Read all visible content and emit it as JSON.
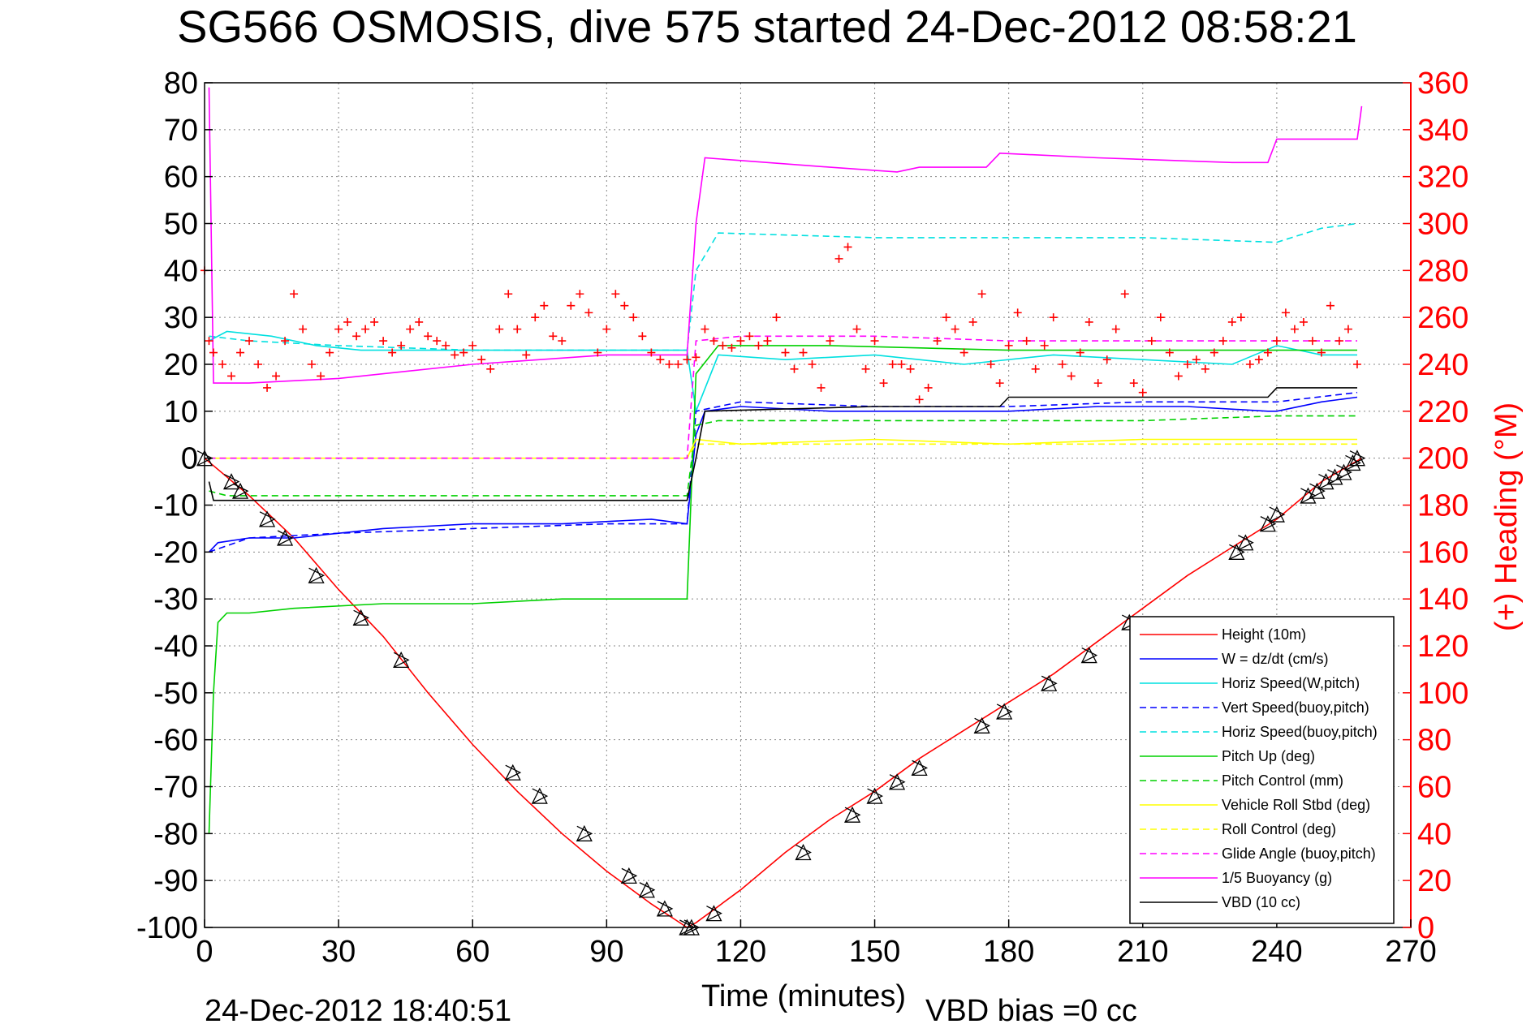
{
  "chart_data": {
    "type": "line",
    "title": "SG566 OSMOSIS, dive 575 started 24-Dec-2012 08:58:21",
    "xlabel": "Time (minutes)",
    "ylabel": "",
    "ylabel_right": "(+) Heading (°M)",
    "footer_left": "24-Dec-2012 18:40:51",
    "footer_right": "VBD bias =0 cc",
    "xlim": [
      0,
      270
    ],
    "ylim": [
      -100,
      80
    ],
    "ylim_right": [
      0,
      360
    ],
    "x_ticks": [
      0,
      30,
      60,
      90,
      120,
      150,
      180,
      210,
      240,
      270
    ],
    "y_ticks": [
      80,
      70,
      60,
      50,
      40,
      30,
      20,
      10,
      0,
      -10,
      -20,
      -30,
      -40,
      -50,
      -60,
      -70,
      -80,
      -90,
      -100
    ],
    "y_ticks_right": [
      360,
      340,
      320,
      300,
      280,
      260,
      240,
      220,
      200,
      180,
      160,
      140,
      120,
      100,
      80,
      60,
      40,
      20,
      0
    ],
    "grid": true,
    "legend_position": "bottom-right",
    "colors": {
      "axis": "#000000",
      "right_axis": "#ff0000",
      "grid": "#888888"
    },
    "series": [
      {
        "name": "Height (10m)",
        "color": "#ff0000",
        "dash": "solid",
        "x": [
          0,
          10,
          20,
          30,
          40,
          50,
          60,
          70,
          80,
          90,
          100,
          108,
          110,
          120,
          130,
          140,
          150,
          160,
          170,
          180,
          190,
          200,
          210,
          220,
          230,
          240,
          250,
          259
        ],
        "y": [
          0,
          -8,
          -17,
          -28,
          -38,
          -50,
          -61,
          -71,
          -80,
          -88,
          -95,
          -100,
          -99,
          -92,
          -84,
          -77,
          -71,
          -64,
          -58,
          -52,
          -46,
          -39,
          -32,
          -25,
          -19,
          -13,
          -5,
          0
        ]
      },
      {
        "name": "W = dz/dt (cm/s)",
        "color": "#0000ff",
        "dash": "solid",
        "x": [
          1,
          3,
          10,
          20,
          30,
          40,
          60,
          80,
          100,
          108,
          110,
          112,
          120,
          140,
          160,
          180,
          200,
          220,
          238,
          240,
          250,
          258
        ],
        "y": [
          -20,
          -18,
          -17,
          -17,
          -16,
          -15,
          -14,
          -14,
          -13,
          -14,
          5,
          10,
          11,
          10,
          10,
          10,
          11,
          11,
          10,
          10,
          12,
          13
        ]
      },
      {
        "name": "Horiz Speed(W,pitch)",
        "color": "#00e0e0",
        "dash": "solid",
        "x": [
          1,
          5,
          15,
          25,
          35,
          50,
          70,
          90,
          108,
          110,
          115,
          130,
          150,
          170,
          190,
          210,
          230,
          240,
          250,
          258
        ],
        "y": [
          25,
          27,
          26,
          24,
          23,
          23,
          23,
          23,
          23,
          10,
          22,
          21,
          22,
          20,
          22,
          21,
          20,
          24,
          22,
          22
        ]
      },
      {
        "name": "Vert Speed(buoy,pitch)",
        "color": "#0000ff",
        "dash": "dashed",
        "x": [
          1,
          10,
          30,
          60,
          90,
          108,
          110,
          120,
          150,
          180,
          210,
          240,
          258
        ],
        "y": [
          -20,
          -17,
          -16,
          -15,
          -14,
          -14,
          10,
          12,
          11,
          11,
          12,
          12,
          14
        ]
      },
      {
        "name": "Horiz Speed(buoy,pitch)",
        "color": "#00e0e0",
        "dash": "dashed",
        "x": [
          1,
          10,
          30,
          60,
          90,
          108,
          110,
          115,
          150,
          180,
          210,
          240,
          250,
          258
        ],
        "y": [
          26,
          25,
          24,
          23,
          23,
          23,
          40,
          48,
          47,
          47,
          47,
          46,
          49,
          50
        ]
      },
      {
        "name": "Pitch Up (deg)",
        "color": "#00d000",
        "dash": "solid",
        "x": [
          1,
          2,
          3,
          5,
          10,
          20,
          40,
          60,
          80,
          100,
          108,
          110,
          115,
          140,
          180,
          220,
          250,
          258
        ],
        "y": [
          -80,
          -50,
          -35,
          -33,
          -33,
          -32,
          -31,
          -31,
          -30,
          -30,
          -30,
          18,
          24,
          24,
          23,
          23,
          23,
          23
        ]
      },
      {
        "name": "Pitch Control (mm)",
        "color": "#00d000",
        "dash": "dashed",
        "x": [
          1,
          5,
          20,
          60,
          100,
          108,
          110,
          115,
          150,
          180,
          210,
          240,
          258
        ],
        "y": [
          -7,
          -8,
          -8,
          -8,
          -8,
          -8,
          7,
          8,
          8,
          8,
          8,
          9,
          9
        ]
      },
      {
        "name": "Vehicle Roll Stbd (deg)",
        "color": "#ffff00",
        "dash": "solid",
        "x": [
          1,
          10,
          30,
          60,
          90,
          108,
          110,
          120,
          150,
          180,
          210,
          240,
          258
        ],
        "y": [
          0,
          0,
          0,
          0,
          0,
          0,
          4,
          3,
          4,
          3,
          4,
          4,
          4
        ]
      },
      {
        "name": "Roll Control (deg)",
        "color": "#ffff00",
        "dash": "dashed",
        "x": [
          1,
          30,
          60,
          90,
          108,
          110,
          150,
          180,
          210,
          240,
          258
        ],
        "y": [
          0,
          0,
          0,
          0,
          0,
          3,
          3,
          3,
          3,
          3,
          3
        ]
      },
      {
        "name": "Glide Angle (buoy,pitch)",
        "color": "#ff00ff",
        "dash": "dashed",
        "x": [
          1,
          10,
          30,
          60,
          90,
          108,
          110,
          120,
          150,
          180,
          210,
          240,
          258
        ],
        "y": [
          0,
          0,
          0,
          0,
          0,
          0,
          25,
          26,
          26,
          25,
          25,
          25,
          25
        ]
      },
      {
        "name": "1/5 Buoyancy (g)",
        "color": "#ff00ff",
        "dash": "solid",
        "x": [
          1,
          2,
          10,
          30,
          60,
          90,
          108,
          110,
          112,
          140,
          155,
          160,
          175,
          178,
          200,
          230,
          238,
          240,
          258,
          259
        ],
        "y": [
          79,
          16,
          16,
          17,
          20,
          22,
          22,
          50,
          64,
          62,
          61,
          62,
          62,
          65,
          64,
          63,
          63,
          68,
          68,
          75
        ]
      },
      {
        "name": "VBD (10 cc)",
        "color": "#000000",
        "dash": "solid",
        "x": [
          1,
          2,
          10,
          60,
          108,
          110,
          112,
          150,
          160,
          178,
          180,
          200,
          238,
          240,
          258
        ],
        "y": [
          -5,
          -9,
          -9,
          -9,
          -9,
          0,
          10,
          11,
          11,
          11,
          13,
          13,
          13,
          15,
          15
        ]
      }
    ],
    "heading_series": {
      "axis": "right",
      "color": "#ff0000",
      "marker": "+",
      "x": [
        0,
        1,
        2,
        4,
        6,
        8,
        10,
        12,
        14,
        16,
        18,
        20,
        22,
        24,
        26,
        28,
        30,
        32,
        34,
        36,
        38,
        40,
        42,
        44,
        46,
        48,
        50,
        52,
        54,
        56,
        58,
        60,
        62,
        64,
        66,
        68,
        70,
        72,
        74,
        76,
        78,
        80,
        82,
        84,
        86,
        88,
        90,
        92,
        94,
        96,
        98,
        100,
        102,
        104,
        106,
        108,
        110,
        112,
        114,
        116,
        118,
        120,
        122,
        124,
        126,
        128,
        130,
        132,
        134,
        136,
        138,
        140,
        142,
        144,
        146,
        148,
        150,
        152,
        154,
        156,
        158,
        160,
        162,
        164,
        166,
        168,
        170,
        172,
        174,
        176,
        178,
        180,
        182,
        184,
        186,
        188,
        190,
        192,
        194,
        196,
        198,
        200,
        202,
        204,
        206,
        208,
        210,
        212,
        214,
        216,
        218,
        220,
        222,
        224,
        226,
        228,
        230,
        232,
        234,
        236,
        238,
        240,
        242,
        244,
        246,
        248,
        250,
        252,
        254,
        256,
        258
      ],
      "y": [
        280,
        250,
        245,
        240,
        235,
        245,
        250,
        240,
        230,
        235,
        250,
        270,
        255,
        240,
        235,
        245,
        255,
        258,
        252,
        255,
        258,
        250,
        245,
        248,
        255,
        258,
        252,
        250,
        248,
        244,
        245,
        248,
        242,
        238,
        255,
        270,
        255,
        244,
        260,
        265,
        252,
        250,
        265,
        270,
        262,
        245,
        255,
        270,
        265,
        260,
        252,
        245,
        242,
        240,
        240,
        242,
        243,
        255,
        250,
        248,
        247,
        250,
        252,
        248,
        250,
        260,
        245,
        238,
        245,
        240,
        230,
        250,
        285,
        290,
        255,
        238,
        250,
        232,
        240,
        240,
        238,
        225,
        230,
        250,
        260,
        255,
        245,
        258,
        270,
        240,
        232,
        248,
        262,
        250,
        238,
        248,
        260,
        240,
        235,
        245,
        258,
        232,
        242,
        255,
        270,
        232,
        228,
        250,
        260,
        245,
        235,
        240,
        242,
        238,
        245,
        250,
        258,
        260,
        240,
        242,
        245,
        250,
        262,
        255,
        258,
        250,
        245,
        265,
        250,
        255,
        240
      ]
    },
    "height_markers": {
      "x": [
        0,
        6,
        8,
        14,
        18,
        25,
        35,
        44,
        69,
        75,
        85,
        95,
        99,
        103,
        108,
        109,
        114,
        134,
        145,
        150,
        155,
        160,
        174,
        179,
        189,
        198,
        207,
        231,
        233,
        238,
        240,
        247,
        249,
        251,
        253,
        255,
        257,
        258
      ],
      "y": [
        0,
        -5,
        -7,
        -13,
        -17,
        -25,
        -34,
        -43,
        -67,
        -72,
        -80,
        -89,
        -92,
        -96,
        -100,
        -100,
        -97,
        -84,
        -76,
        -72,
        -69,
        -66,
        -57,
        -54,
        -48,
        -42,
        -35,
        -20,
        -18,
        -14,
        -12,
        -8,
        -7,
        -5,
        -4,
        -3,
        -1,
        0
      ]
    }
  }
}
